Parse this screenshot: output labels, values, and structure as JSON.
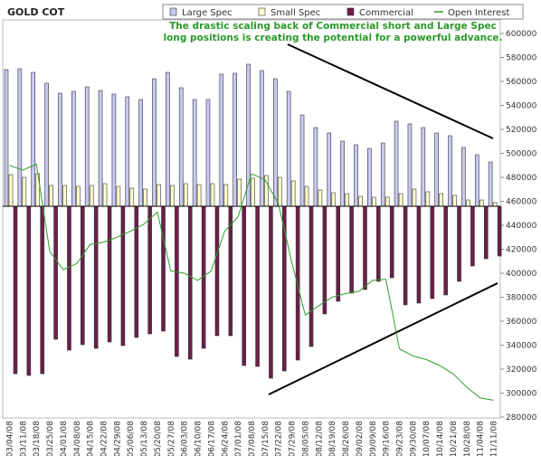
{
  "chart_data": {
    "type": "bar",
    "title": "GOLD COT",
    "annotation": [
      "The drastic scaling back of Commercial short and Large Spec",
      "long positions is creating the potential for a powerful advance."
    ],
    "categories": [
      "03/04/08",
      "03/11/08",
      "03/18/08",
      "03/25/08",
      "04/01/08",
      "04/08/08",
      "04/15/08",
      "04/22/08",
      "04/29/08",
      "05/06/08",
      "05/13/08",
      "05/20/08",
      "05/27/08",
      "06/03/08",
      "06/10/08",
      "06/17/08",
      "06/24/08",
      "07/01/08",
      "07/08/08",
      "07/15/08",
      "07/22/08",
      "07/29/08",
      "08/05/08",
      "08/12/08",
      "08/19/08",
      "08/26/08",
      "09/02/08",
      "09/09/08",
      "09/16/08",
      "09/23/08",
      "09/30/08",
      "10/07/08",
      "10/14/08",
      "10/21/08",
      "10/28/08",
      "11/04/08",
      "11/11/08"
    ],
    "ylim": [
      -233,
      191
    ],
    "y2lim": [
      280000,
      600000
    ],
    "y2ticks": [
      {
        "value": 280000,
        "label": "280000"
      },
      {
        "value": 300000,
        "label": "300000"
      },
      {
        "value": 320000,
        "label": "320000"
      },
      {
        "value": 340000,
        "label": "340000"
      },
      {
        "value": 360000,
        "label": "360000"
      },
      {
        "value": 380000,
        "label": "380000"
      },
      {
        "value": 400000,
        "label": "400000"
      },
      {
        "value": 420000,
        "label": "420000"
      },
      {
        "value": 440000,
        "label": "440000"
      },
      {
        "value": 460000,
        "label": "460000"
      },
      {
        "value": 480000,
        "label": "480000"
      },
      {
        "value": 500000,
        "label": "500000"
      },
      {
        "value": 520000,
        "label": "520000"
      },
      {
        "value": 540000,
        "label": "540000"
      },
      {
        "value": 560000,
        "label": "560000"
      },
      {
        "value": 580000,
        "label": "580000"
      },
      {
        "value": 600000,
        "label": "600000"
      }
    ],
    "grid": false,
    "legend": "top",
    "series": [
      {
        "name": "Large Spec",
        "type": "bar",
        "color": "#c8c8f4",
        "values": [
          151,
          152,
          148,
          136,
          125,
          127,
          132,
          128,
          124,
          121,
          118,
          141,
          148,
          131,
          118,
          118,
          146,
          147,
          157,
          150,
          141,
          127,
          101,
          87,
          81,
          72,
          68,
          64,
          70,
          94,
          91,
          87,
          81,
          78,
          65,
          57,
          49
        ]
      },
      {
        "name": "Small Spec",
        "type": "bar",
        "color": "#ffffcc",
        "values": [
          35,
          32,
          36,
          23,
          23,
          22,
          23,
          25,
          22,
          20,
          19,
          24,
          23,
          25,
          24,
          25,
          24,
          30,
          31,
          34,
          32,
          28,
          22,
          18,
          15,
          14,
          11,
          10,
          10,
          14,
          19,
          16,
          14,
          12,
          7,
          7,
          4
        ]
      },
      {
        "name": "Commercial",
        "type": "bar",
        "color": "#6b1f4b",
        "values": [
          -185,
          -187,
          -185,
          -147,
          -159,
          -153,
          -157,
          -150,
          -154,
          -145,
          -141,
          -138,
          -166,
          -169,
          -157,
          -143,
          -143,
          -176,
          -177,
          -190,
          -182,
          -170,
          -155,
          -119,
          -105,
          -96,
          -92,
          -83,
          -79,
          -109,
          -107,
          -102,
          -98,
          -83,
          -66,
          -58,
          -55
        ]
      },
      {
        "name": "Open Interest",
        "type": "line",
        "axis": "y2",
        "color": "#2e9e2e",
        "values": [
          490000,
          486000,
          491000,
          418000,
          403000,
          408000,
          424000,
          426000,
          430000,
          435000,
          441000,
          451000,
          402000,
          400000,
          394000,
          402000,
          435000,
          447000,
          483000,
          478000,
          458000,
          409000,
          365000,
          373000,
          380000,
          383000,
          385000,
          394000,
          395000,
          337000,
          331000,
          328000,
          323000,
          316000,
          305000,
          296000,
          294000
        ]
      }
    ]
  }
}
